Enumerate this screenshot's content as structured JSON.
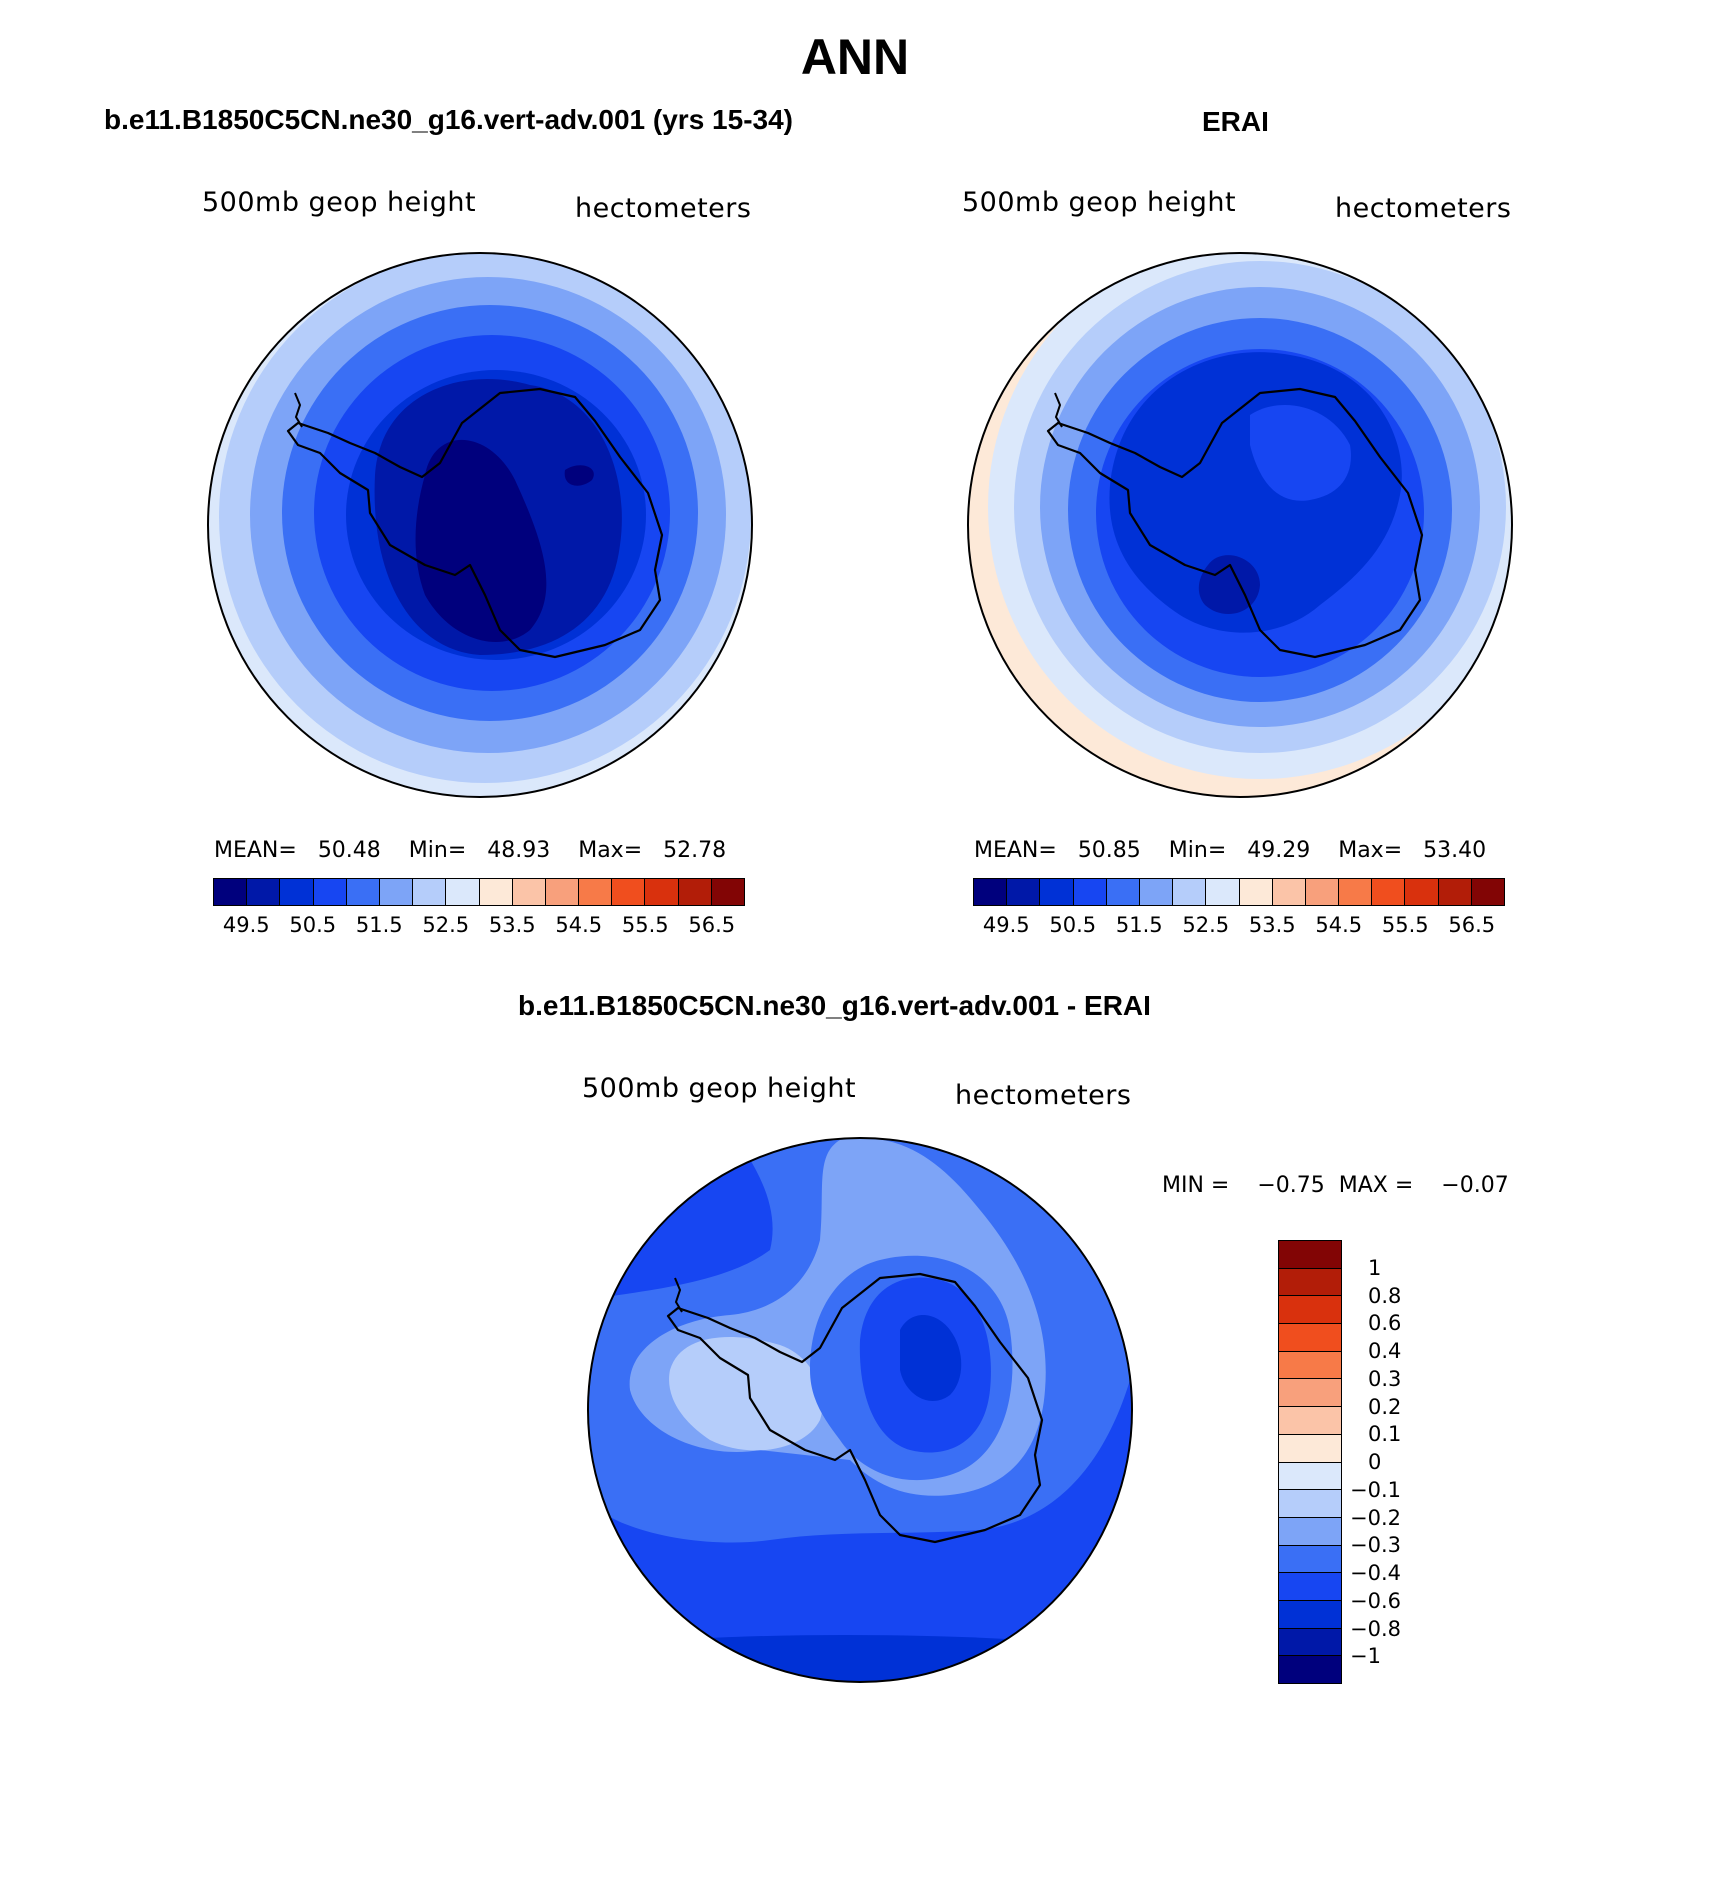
{
  "figure": {
    "title": "ANN"
  },
  "panels": {
    "model": {
      "title": "b.e11.B1850C5CN.ne30_g16.vert-adv.001 (yrs 15-34)",
      "variable": "500mb geop height",
      "units": "hectometers",
      "mean_label": "MEAN=",
      "mean": "50.48",
      "min_label": "Min=",
      "min": "48.93",
      "max_label": "Max=",
      "max": "52.78"
    },
    "obs": {
      "title": "ERAI",
      "variable": "500mb geop height",
      "units": "hectometers",
      "mean_label": "MEAN=",
      "mean": "50.85",
      "min_label": "Min=",
      "min": "49.29",
      "max_label": "Max=",
      "max": "53.40"
    },
    "diff": {
      "title": "b.e11.B1850C5CN.ne30_g16.vert-adv.001 - ERAI",
      "variable": "500mb geop height",
      "units": "hectometers",
      "min_label": "MIN =",
      "min": "−0.75",
      "max_label": "MAX =",
      "max": "−0.07"
    }
  },
  "colorbar_abs": {
    "ticks": [
      "49.5",
      "50.5",
      "51.5",
      "52.5",
      "53.5",
      "54.5",
      "55.5",
      "56.5"
    ],
    "colors": [
      "#00007d",
      "#0018a8",
      "#0031d6",
      "#1746f2",
      "#3a6ff5",
      "#7da4f7",
      "#b5cdfa",
      "#dbe8fb",
      "#fde9d8",
      "#fbc4a8",
      "#f8a07c",
      "#f77a48",
      "#f04e1e",
      "#d9310d",
      "#b21d08",
      "#820505"
    ]
  },
  "colorbar_diff": {
    "ticks": [
      "1",
      "0.8",
      "0.6",
      "0.4",
      "0.3",
      "0.2",
      "0.1",
      "0",
      "−0.1",
      "−0.2",
      "−0.3",
      "−0.4",
      "−0.6",
      "−0.8",
      "−1"
    ],
    "colors": [
      "#820505",
      "#b21d08",
      "#d9310d",
      "#f04e1e",
      "#f77a48",
      "#f8a07c",
      "#fbc4a8",
      "#fde9d8",
      "#dbe8fb",
      "#b5cdfa",
      "#7da4f7",
      "#3a6ff5",
      "#1746f2",
      "#0031d6",
      "#0018a8",
      "#00007d"
    ]
  },
  "map_colors": {
    "c495": "#00007d",
    "c500": "#0018a8",
    "c505": "#0031d6",
    "c510": "#1746f2",
    "c515": "#3a6ff5",
    "c520": "#7da4f7",
    "c525": "#b5cdfa",
    "c530": "#dbe8fb",
    "c535": "#fde9d8"
  }
}
